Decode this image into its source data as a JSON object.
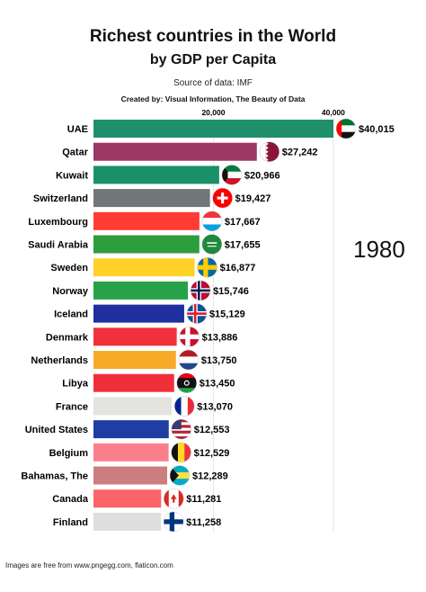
{
  "header": {
    "title": "Richest countries in the World",
    "subtitle": "by GDP per Capita",
    "source": "Source of data: IMF",
    "credit": "Created by: Visual Information, The Beauty of Data"
  },
  "year_label": "1980",
  "footer": "Images are free from www.pngegg.com, flaticon.com",
  "chart_data": {
    "type": "bar",
    "orientation": "horizontal",
    "x_ticks": [
      20000,
      40000
    ],
    "x_tick_labels": [
      "20,000",
      "40,000"
    ],
    "xlim": [
      0,
      40015
    ],
    "grid": true,
    "categories": [
      "UAE",
      "Qatar",
      "Kuwait",
      "Switzerland",
      "Luxembourg",
      "Saudi Arabia",
      "Sweden",
      "Norway",
      "Iceland",
      "Denmark",
      "Netherlands",
      "Libya",
      "France",
      "United States",
      "Belgium",
      "Bahamas, The",
      "Canada",
      "Finland"
    ],
    "values": [
      40015,
      27242,
      20966,
      19427,
      17667,
      17655,
      16877,
      15746,
      15129,
      13886,
      13750,
      13450,
      13070,
      12553,
      12529,
      12289,
      11281,
      11258
    ],
    "value_labels": [
      "$40,015",
      "$27,242",
      "$20,966",
      "$19,427",
      "$17,667",
      "$17,655",
      "$16,877",
      "$15,746",
      "$15,129",
      "$13,886",
      "$13,750",
      "$13,450",
      "$13,070",
      "$12,553",
      "$12,529",
      "$12,289",
      "$11,281",
      "$11,258"
    ],
    "colors": [
      "#1f8f6c",
      "#9c3766",
      "#1a9068",
      "#6f7777",
      "#ff3b34",
      "#2d9e3c",
      "#fdd128",
      "#27a248",
      "#1f2fa0",
      "#f0303b",
      "#f7a928",
      "#ef3039",
      "#e3e4df",
      "#1f3ea3",
      "#fb7f8b",
      "#cc7d7d",
      "#fb6469",
      "#dedede"
    ],
    "flag_icons": [
      "uae-flag-icon",
      "qatar-flag-icon",
      "kuwait-flag-icon",
      "switzerland-flag-icon",
      "luxembourg-flag-icon",
      "saudi-arabia-flag-icon",
      "sweden-flag-icon",
      "norway-flag-icon",
      "iceland-flag-icon",
      "denmark-flag-icon",
      "netherlands-flag-icon",
      "libya-flag-icon",
      "france-flag-icon",
      "united-states-flag-icon",
      "belgium-flag-icon",
      "bahamas-flag-icon",
      "canada-flag-icon",
      "finland-flag-icon"
    ]
  }
}
